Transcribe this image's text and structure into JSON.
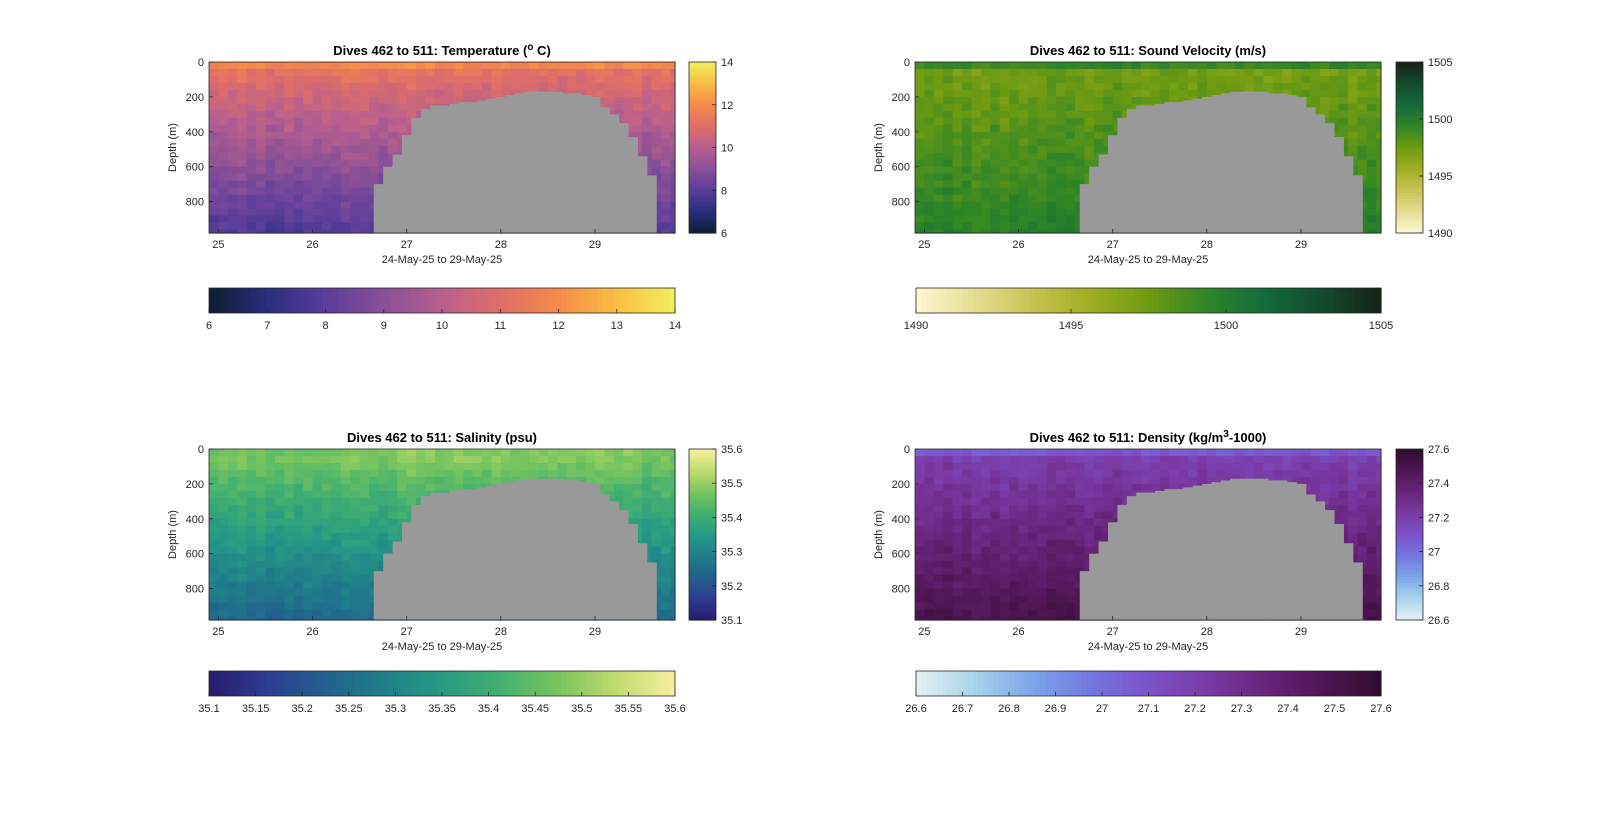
{
  "figure": {
    "background": "#ffffff",
    "seafloor_color": "#999999"
  },
  "chart_data": [
    {
      "type": "heatmap",
      "title_main": "Dives 462 to 511: Temperature (",
      "title_sup": "o",
      "title_tail": " C)",
      "xlabel": "24-May-25 to 29-May-25",
      "ylabel": "Depth (m)",
      "xlim": [
        24.9,
        29.85
      ],
      "ylim": [
        0,
        980
      ],
      "xticks": [
        25,
        26,
        27,
        28,
        29
      ],
      "yticks": [
        0,
        200,
        400,
        600,
        800
      ],
      "clim": [
        6,
        14
      ],
      "colorbar_ticks": [
        6,
        8,
        10,
        12,
        14
      ],
      "hbar_ticks": [
        6,
        7,
        8,
        9,
        10,
        11,
        12,
        13,
        14
      ],
      "colormap": [
        "#0d1d33",
        "#2a2d7c",
        "#5a3e9b",
        "#8a4f98",
        "#b7608e",
        "#e06e67",
        "#f58b4a",
        "#f9be44",
        "#f2ef5c"
      ],
      "profile": {
        "surface": 13,
        "mixed": 11.3,
        "deep": 7.8
      }
    },
    {
      "type": "heatmap",
      "title_main": "Dives 462 to 511: Sound Velocity (m/s)",
      "title_sup": "",
      "title_tail": "",
      "xlabel": "24-May-25 to 29-May-25",
      "ylabel": "Depth (m)",
      "xlim": [
        24.9,
        29.85
      ],
      "ylim": [
        0,
        980
      ],
      "xticks": [
        25,
        26,
        27,
        28,
        29
      ],
      "yticks": [
        0,
        200,
        400,
        600,
        800
      ],
      "clim": [
        1490,
        1505
      ],
      "colorbar_ticks": [
        1490,
        1495,
        1500,
        1505
      ],
      "hbar_ticks": [
        1490,
        1495,
        1500,
        1505
      ],
      "colormap": [
        "#fdf8d2",
        "#e6dd93",
        "#c8c452",
        "#9fae22",
        "#6e9b12",
        "#2f8527",
        "#136a3a",
        "#134a2e",
        "#172218"
      ],
      "profile": {
        "surface": 1503.2,
        "mixed": 1497.2,
        "deep": 1499.8
      }
    },
    {
      "type": "heatmap",
      "title_main": "Dives 462 to 511: Salinity (psu)",
      "title_sup": "",
      "title_tail": "",
      "xlabel": "24-May-25 to 29-May-25",
      "ylabel": "Depth (m)",
      "xlim": [
        24.9,
        29.85
      ],
      "ylim": [
        0,
        980
      ],
      "xticks": [
        25,
        26,
        27,
        28,
        29
      ],
      "yticks": [
        0,
        200,
        400,
        600,
        800
      ],
      "clim": [
        35.1,
        35.6
      ],
      "colorbar_ticks": [
        35.1,
        35.2,
        35.3,
        35.4,
        35.5,
        35.6
      ],
      "hbar_ticks": [
        35.1,
        35.15,
        35.2,
        35.25,
        35.3,
        35.35,
        35.4,
        35.45,
        35.5,
        35.55,
        35.6
      ],
      "colormap": [
        "#2a1a6e",
        "#2c3d8f",
        "#22608e",
        "#1f7f8a",
        "#279a84",
        "#43b16f",
        "#7ac55e",
        "#c1dc6e",
        "#f8efa1"
      ],
      "profile": {
        "surface": 35.44,
        "mixed": 35.48,
        "deep": 35.24
      }
    },
    {
      "type": "heatmap",
      "title_main": "Dives 462 to 511: Density (kg/m",
      "title_sup": "3",
      "title_tail": "-1000)",
      "xlabel": "24-May-25 to 29-May-25",
      "ylabel": "Depth (m)",
      "xlim": [
        24.9,
        29.85
      ],
      "ylim": [
        0,
        980
      ],
      "xticks": [
        25,
        26,
        27,
        28,
        29
      ],
      "yticks": [
        0,
        200,
        400,
        600,
        800
      ],
      "clim": [
        26.6,
        27.6
      ],
      "colorbar_ticks": [
        26.6,
        26.8,
        27,
        27.2,
        27.4,
        27.6
      ],
      "hbar_ticks": [
        26.6,
        26.7,
        26.8,
        26.9,
        27,
        27.1,
        27.2,
        27.3,
        27.4,
        27.5,
        27.6
      ],
      "colormap": [
        "#e4f2f2",
        "#a8d4eb",
        "#7ba6ea",
        "#7476e0",
        "#7b52c8",
        "#7a3aa4",
        "#6a247c",
        "#4e1553",
        "#2f0d2e"
      ],
      "profile": {
        "surface": 26.88,
        "mixed": 27.18,
        "deep": 27.5
      }
    }
  ],
  "seafloor": {
    "x": [
      26.7,
      26.8,
      26.9,
      27.0,
      27.1,
      27.2,
      27.3,
      27.4,
      27.5,
      27.6,
      27.7,
      27.8,
      27.9,
      28.0,
      28.1,
      28.2,
      28.3,
      28.4,
      28.5,
      28.6,
      28.7,
      28.8,
      28.9,
      29.0,
      29.1,
      29.2,
      29.3,
      29.4,
      29.5,
      29.6
    ],
    "depth": [
      700,
      600,
      530,
      420,
      320,
      270,
      250,
      250,
      240,
      230,
      230,
      220,
      210,
      200,
      190,
      180,
      170,
      170,
      170,
      170,
      180,
      180,
      190,
      200,
      260,
      300,
      350,
      430,
      540,
      650
    ]
  }
}
